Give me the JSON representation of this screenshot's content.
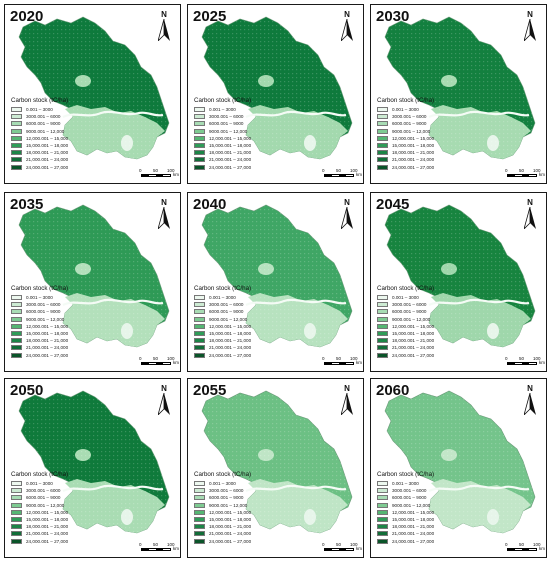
{
  "legend": {
    "title": "Carbon stock (tC/ha)",
    "classes": [
      {
        "label": "0.001 – 3000",
        "color": "#edf8ef"
      },
      {
        "label": "3000.001 – 6000",
        "color": "#cdebd3"
      },
      {
        "label": "6000.001 – 9000",
        "color": "#a8dcb4"
      },
      {
        "label": "9000.001 – 12,000",
        "color": "#7ecb92"
      },
      {
        "label": "12,000.001 – 15,000",
        "color": "#55b673"
      },
      {
        "label": "15,000.001 – 18,000",
        "color": "#2f9c58"
      },
      {
        "label": "18,000.001 – 21,000",
        "color": "#1d8547"
      },
      {
        "label": "21,000.001 – 24,000",
        "color": "#126d38"
      },
      {
        "label": "24,000.001 – 27,000",
        "color": "#0a5429"
      }
    ]
  },
  "scalebar": {
    "ticks": [
      "0",
      "50",
      "100"
    ],
    "unit": "km"
  },
  "north_label": "N",
  "panels": [
    {
      "year": "2020",
      "north_color": "#0e7a3c",
      "south_color": "#a7dbb1"
    },
    {
      "year": "2025",
      "north_color": "#0e7a3c",
      "south_color": "#a3d9ae"
    },
    {
      "year": "2030",
      "north_color": "#13803f",
      "south_color": "#a7dbb1"
    },
    {
      "year": "2035",
      "north_color": "#2e9a56",
      "south_color": "#b3e0bb"
    },
    {
      "year": "2040",
      "north_color": "#3fa665",
      "south_color": "#b7e2bf"
    },
    {
      "year": "2045",
      "north_color": "#17843f",
      "south_color": "#9fd7ab"
    },
    {
      "year": "2050",
      "north_color": "#0f7a3b",
      "south_color": "#a9dcb3"
    },
    {
      "year": "2055",
      "north_color": "#6cc084",
      "south_color": "#bfe5c6"
    },
    {
      "year": "2060",
      "north_color": "#74c48b",
      "south_color": "#c2e6c8"
    }
  ]
}
